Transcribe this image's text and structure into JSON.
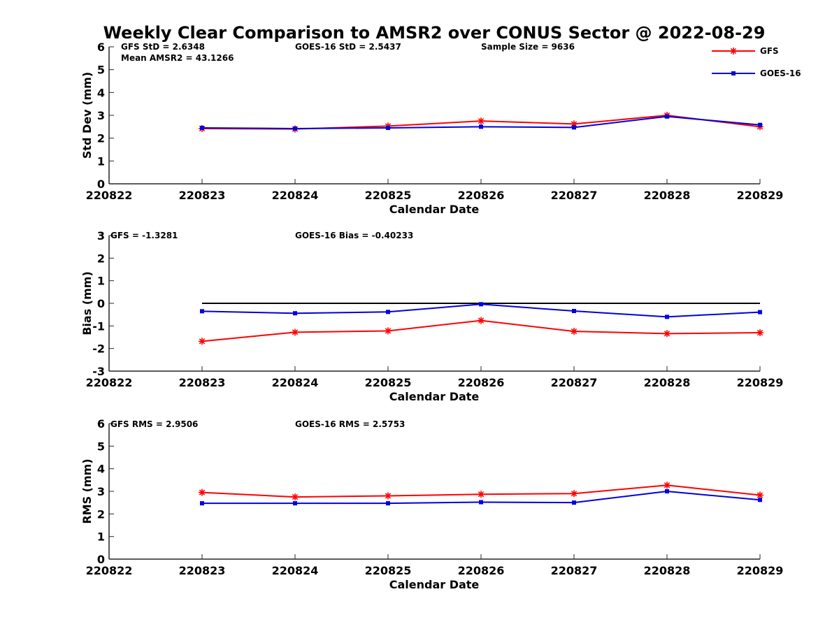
{
  "title": "Weekly Clear Comparison to AMSR2 over CONUS Sector @ 2022-08-29",
  "colors": {
    "gfs": "#ff0000",
    "goes": "#0000e0",
    "zero_line": "#000000"
  },
  "legend": {
    "placement": "top-right",
    "items": [
      {
        "label": "GFS",
        "marker": "asterisk"
      },
      {
        "label": "GOES-16",
        "marker": "square"
      }
    ]
  },
  "chart_data": [
    {
      "type": "line",
      "xlabel": "Calendar Date",
      "ylabel": "Std Dev (mm)",
      "ylim": [
        0,
        6
      ],
      "yticks": [
        "0",
        "1",
        "2",
        "3",
        "4",
        "5",
        "6"
      ],
      "x": [
        "220822",
        "220823",
        "220824",
        "220825",
        "220826",
        "220827",
        "220828",
        "220829"
      ],
      "annotations": [
        "GFS StD = 2.6348",
        "Mean AMSR2 = 43.1266",
        "GOES-16 StD = 2.5437",
        "Sample Size = 9636"
      ],
      "series": [
        {
          "name": "GFS",
          "x": [
            "220823",
            "220824",
            "220825",
            "220826",
            "220827",
            "220828",
            "220829"
          ],
          "values": [
            2.42,
            2.4,
            2.53,
            2.75,
            2.62,
            3.0,
            2.5
          ]
        },
        {
          "name": "GOES-16",
          "x": [
            "220823",
            "220824",
            "220825",
            "220826",
            "220827",
            "220828",
            "220829"
          ],
          "values": [
            2.45,
            2.42,
            2.45,
            2.5,
            2.47,
            2.95,
            2.58
          ]
        }
      ]
    },
    {
      "type": "line",
      "xlabel": "Calendar Date",
      "ylabel": "Bias (mm)",
      "ylim": [
        -3,
        3
      ],
      "yticks": [
        "-3",
        "-2",
        "-1",
        "0",
        "1",
        "2",
        "3"
      ],
      "x": [
        "220822",
        "220823",
        "220824",
        "220825",
        "220826",
        "220827",
        "220828",
        "220829"
      ],
      "annotations": [
        "GFS = -1.3281",
        "GOES-16 Bias  = -0.40233"
      ],
      "zero_line": true,
      "series": [
        {
          "name": "GFS",
          "x": [
            "220823",
            "220824",
            "220825",
            "220826",
            "220827",
            "220828",
            "220829"
          ],
          "values": [
            -1.68,
            -1.28,
            -1.22,
            -0.76,
            -1.24,
            -1.34,
            -1.3
          ]
        },
        {
          "name": "GOES-16",
          "x": [
            "220823",
            "220824",
            "220825",
            "220826",
            "220827",
            "220828",
            "220829"
          ],
          "values": [
            -0.35,
            -0.44,
            -0.38,
            -0.04,
            -0.34,
            -0.6,
            -0.39
          ]
        }
      ]
    },
    {
      "type": "line",
      "xlabel": "Calendar Date",
      "ylabel": "RMS (mm)",
      "ylim": [
        0,
        6
      ],
      "yticks": [
        "0",
        "1",
        "2",
        "3",
        "4",
        "5",
        "6"
      ],
      "x": [
        "220822",
        "220823",
        "220824",
        "220825",
        "220826",
        "220827",
        "220828",
        "220829"
      ],
      "annotations": [
        "GFS RMS = 2.9506",
        "GOES-16 RMS = 2.5753"
      ],
      "series": [
        {
          "name": "GFS",
          "x": [
            "220823",
            "220824",
            "220825",
            "220826",
            "220827",
            "220828",
            "220829"
          ],
          "values": [
            2.95,
            2.75,
            2.8,
            2.87,
            2.9,
            3.27,
            2.83
          ]
        },
        {
          "name": "GOES-16",
          "x": [
            "220823",
            "220824",
            "220825",
            "220826",
            "220827",
            "220828",
            "220829"
          ],
          "values": [
            2.47,
            2.47,
            2.47,
            2.52,
            2.5,
            3.0,
            2.62
          ]
        }
      ]
    }
  ]
}
